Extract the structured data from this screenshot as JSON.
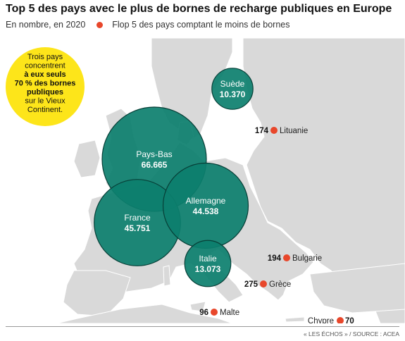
{
  "title": "Top 5 des pays avec le plus de bornes de recharge publiques en Europe",
  "subtitle": "En nombre, en 2020",
  "legend_flop": "Flop 5 des pays comptant le moins de bornes",
  "callout": [
    "Trois pays",
    "concentrent",
    "à eux seuls",
    "70 % des bornes",
    "publiques",
    "sur le Vieux",
    "Continent."
  ],
  "source": "« LES ÉCHOS » / SOURCE : ACEA",
  "colors": {
    "top_fill": "#0c7f6e",
    "top_stroke": "#073f37",
    "flop_dot": "#e8472b",
    "land": "#d9d9d9",
    "sea": "#ffffff",
    "callout": "#fde51a"
  },
  "chart_data": {
    "type": "bubble-map",
    "unit": "bornes de recharge publiques",
    "year": 2020,
    "top5": [
      {
        "country": "Pays-Bas",
        "value": "66.665"
      },
      {
        "country": "France",
        "value": "45.751"
      },
      {
        "country": "Allemagne",
        "value": "44.538"
      },
      {
        "country": "Italie",
        "value": "13.073"
      },
      {
        "country": "Suède",
        "value": "10.370"
      }
    ],
    "flop5": [
      {
        "country": "Lituanie",
        "value": "174"
      },
      {
        "country": "Bulgarie",
        "value": "194"
      },
      {
        "country": "Grèce",
        "value": "275"
      },
      {
        "country": "Malte",
        "value": "96"
      },
      {
        "country": "Chypre",
        "value": "70"
      }
    ]
  }
}
